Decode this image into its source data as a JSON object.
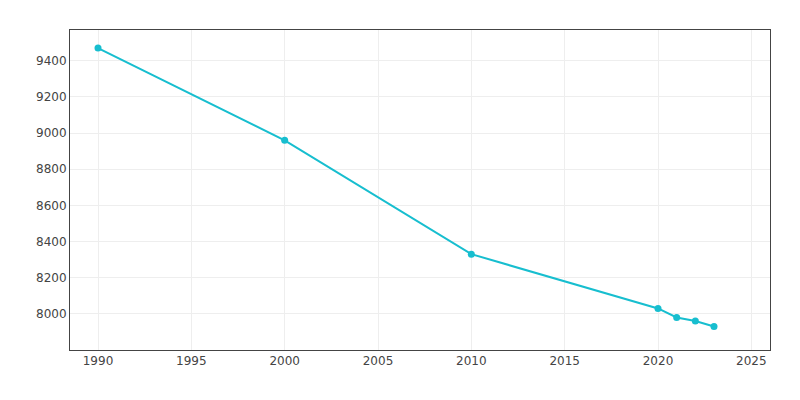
{
  "chart_data": {
    "type": "line",
    "x": [
      1990,
      2000,
      2010,
      2020,
      2021,
      2022,
      2023
    ],
    "values": [
      9470,
      8960,
      8330,
      8030,
      7980,
      7960,
      7930
    ],
    "color": "#17BECF",
    "marker": "circle",
    "xlim": [
      1988.5,
      2026
    ],
    "ylim": [
      7800,
      9570
    ],
    "xticks": [
      1990,
      1995,
      2000,
      2005,
      2010,
      2015,
      2020,
      2025
    ],
    "yticks": [
      8000,
      8200,
      8400,
      8600,
      8800,
      9000,
      9200,
      9400
    ],
    "grid": true
  }
}
